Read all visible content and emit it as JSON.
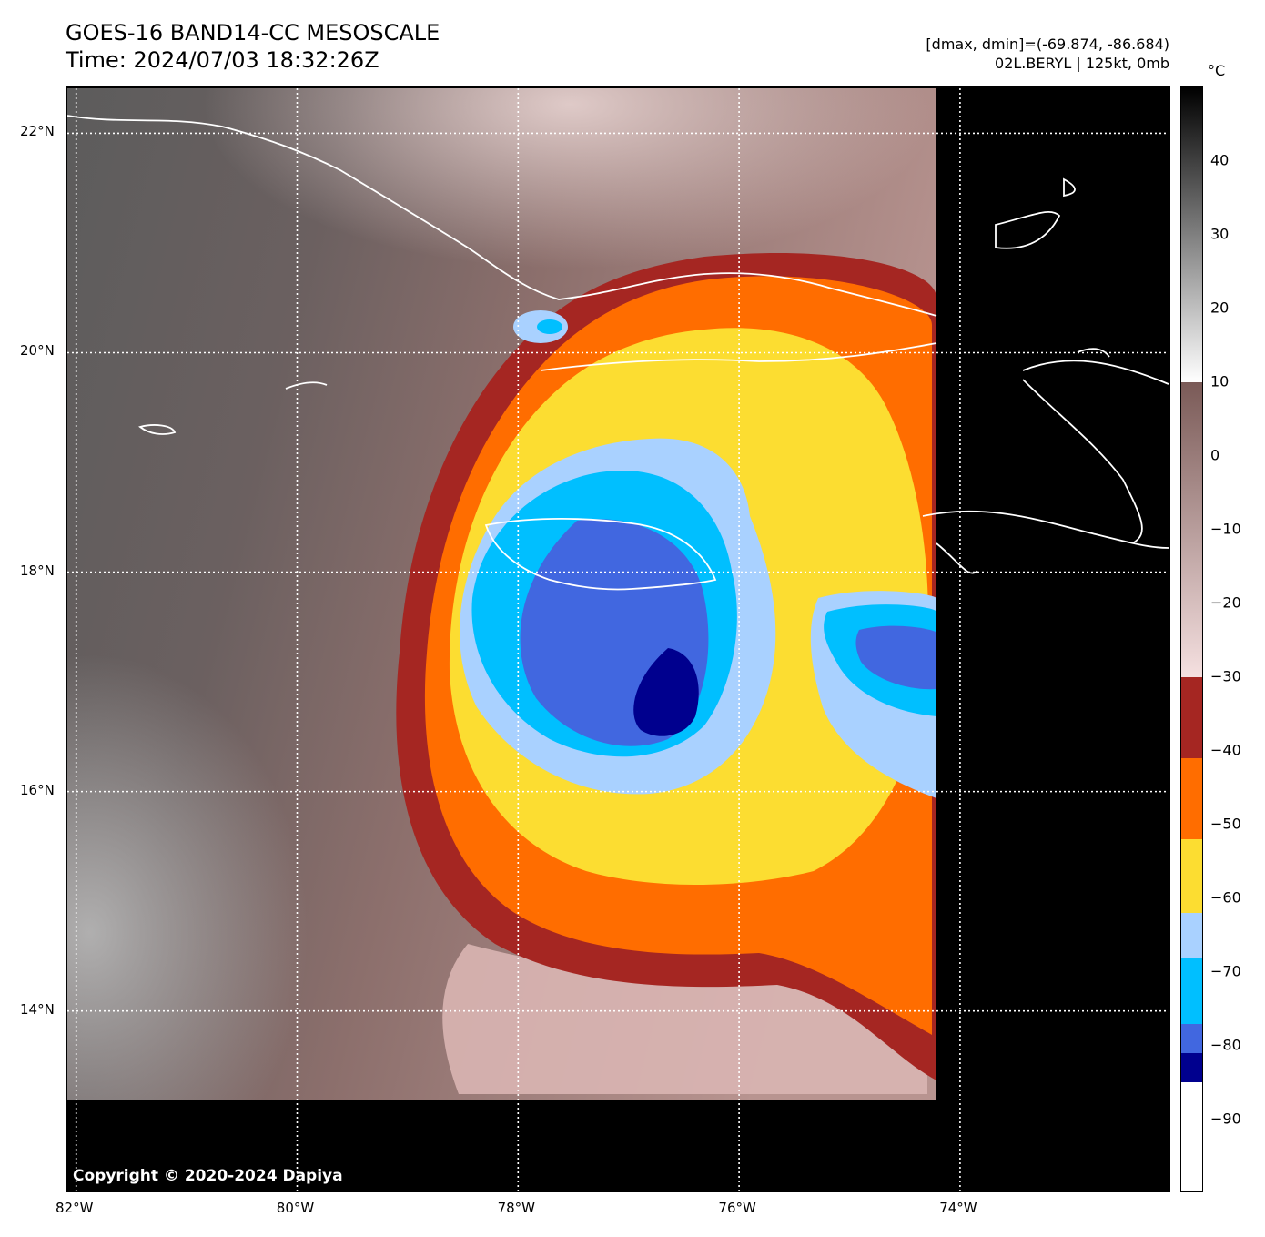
{
  "header": {
    "title_line1": "GOES-16 BAND14-CC MESOSCALE",
    "title_line2": "Time: 2024/07/03 18:32:26Z",
    "info_line1": "[dmax, dmin]=(-69.874, -86.684)",
    "info_line2": "02L.BERYL | 125kt, 0mb"
  },
  "map": {
    "copyright": "Copyright © 2020-2024 Dapiya",
    "lat_labels": [
      "22°N",
      "20°N",
      "18°N",
      "16°N",
      "14°N"
    ],
    "lon_labels": [
      "82°W",
      "80°W",
      "78°W",
      "76°W",
      "74°W"
    ],
    "lat_values": [
      22,
      20,
      18,
      16,
      14
    ],
    "lon_values": [
      -82,
      -80,
      -78,
      -76,
      -74
    ],
    "extent": {
      "lon_min": -82.08,
      "lon_max": -72.08,
      "lat_min": 12.33,
      "lat_max": 22.41
    },
    "storm_center": {
      "lon": -76.8,
      "lat": 17.2
    },
    "colors": {
      "background": "#000000",
      "coast": "#ffffff",
      "grid": "#ffffff"
    }
  },
  "colorbar": {
    "unit": "°C",
    "ticks": [
      "40",
      "30",
      "20",
      "10",
      "0",
      "−10",
      "−20",
      "−30",
      "−40",
      "−50",
      "−60",
      "−70",
      "−80",
      "−90"
    ],
    "tick_values": [
      40,
      30,
      20,
      10,
      0,
      -10,
      -20,
      -30,
      -40,
      -50,
      -60,
      -70,
      -80,
      -90
    ],
    "range": [
      -100,
      50
    ],
    "segments": [
      {
        "from": 50,
        "to": 10,
        "kind": "gray",
        "colors": [
          "#000000",
          "#ffffff"
        ]
      },
      {
        "from": 10,
        "to": -30,
        "kind": "gradient",
        "colors": [
          "#7a5a57",
          "#f5e0e0"
        ]
      },
      {
        "from": -30,
        "to": -41,
        "color": "#a52622"
      },
      {
        "from": -41,
        "to": -52,
        "color": "#ff6d00"
      },
      {
        "from": -52,
        "to": -62,
        "color": "#fcdd31"
      },
      {
        "from": -62,
        "to": -68,
        "color": "#a9d1ff"
      },
      {
        "from": -68,
        "to": -77,
        "color": "#00bfff"
      },
      {
        "from": -77,
        "to": -81,
        "color": "#4167e0"
      },
      {
        "from": -81,
        "to": -85,
        "color": "#00008e"
      },
      {
        "from": -85,
        "to": -100,
        "color": "#ffffff"
      }
    ]
  }
}
